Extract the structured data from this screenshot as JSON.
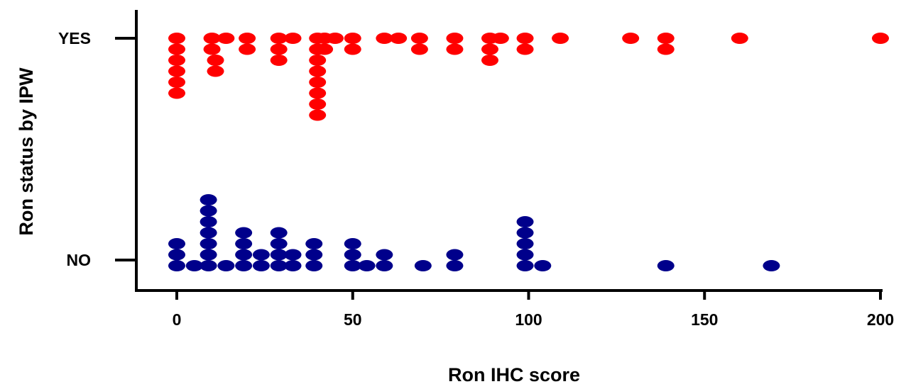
{
  "chart_data": {
    "type": "scatter",
    "title": "",
    "xlabel": "Ron IHC score",
    "ylabel": "Ron status by IPW",
    "xlim": [
      0,
      200
    ],
    "x_ticks": [
      0,
      50,
      100,
      150,
      200
    ],
    "categories": [
      "NO",
      "YES"
    ],
    "grid": false,
    "legend": "none",
    "series": [
      {
        "category": "YES",
        "color": "#ff0000",
        "points": [
          {
            "x": 0,
            "stack": 0
          },
          {
            "x": 0,
            "stack": 1
          },
          {
            "x": 0,
            "stack": 2
          },
          {
            "x": 0,
            "stack": 3
          },
          {
            "x": 0,
            "stack": 4
          },
          {
            "x": 0,
            "stack": 5
          },
          {
            "x": 10,
            "stack": 0
          },
          {
            "x": 10,
            "stack": 1
          },
          {
            "x": 11,
            "stack": 2
          },
          {
            "x": 11,
            "stack": 3
          },
          {
            "x": 14,
            "stack": 0
          },
          {
            "x": 20,
            "stack": 0
          },
          {
            "x": 20,
            "stack": 1
          },
          {
            "x": 29,
            "stack": 0
          },
          {
            "x": 29,
            "stack": 1
          },
          {
            "x": 29,
            "stack": 2
          },
          {
            "x": 33,
            "stack": 0
          },
          {
            "x": 40,
            "stack": 0
          },
          {
            "x": 40,
            "stack": 1
          },
          {
            "x": 40,
            "stack": 2
          },
          {
            "x": 40,
            "stack": 3
          },
          {
            "x": 40,
            "stack": 4
          },
          {
            "x": 40,
            "stack": 5
          },
          {
            "x": 40,
            "stack": 6
          },
          {
            "x": 40,
            "stack": 7
          },
          {
            "x": 42,
            "stack": 0
          },
          {
            "x": 42,
            "stack": 1
          },
          {
            "x": 45,
            "stack": 0
          },
          {
            "x": 50,
            "stack": 0
          },
          {
            "x": 50,
            "stack": 1
          },
          {
            "x": 59,
            "stack": 0
          },
          {
            "x": 63,
            "stack": 0
          },
          {
            "x": 69,
            "stack": 0
          },
          {
            "x": 69,
            "stack": 1
          },
          {
            "x": 79,
            "stack": 0
          },
          {
            "x": 79,
            "stack": 1
          },
          {
            "x": 89,
            "stack": 0
          },
          {
            "x": 89,
            "stack": 1
          },
          {
            "x": 89,
            "stack": 2
          },
          {
            "x": 92,
            "stack": 0
          },
          {
            "x": 99,
            "stack": 0
          },
          {
            "x": 99,
            "stack": 1
          },
          {
            "x": 109,
            "stack": 0
          },
          {
            "x": 129,
            "stack": 0
          },
          {
            "x": 139,
            "stack": 0
          },
          {
            "x": 139,
            "stack": 1
          },
          {
            "x": 160,
            "stack": 0
          },
          {
            "x": 200,
            "stack": 0
          }
        ]
      },
      {
        "category": "NO",
        "color": "#00008b",
        "points": [
          {
            "x": 0,
            "stack": 0
          },
          {
            "x": 0,
            "stack": 1
          },
          {
            "x": 0,
            "stack": 2
          },
          {
            "x": 5,
            "stack": 0
          },
          {
            "x": 9,
            "stack": 0
          },
          {
            "x": 9,
            "stack": 1
          },
          {
            "x": 9,
            "stack": 2
          },
          {
            "x": 9,
            "stack": 3
          },
          {
            "x": 9,
            "stack": 4
          },
          {
            "x": 9,
            "stack": 5
          },
          {
            "x": 9,
            "stack": 6
          },
          {
            "x": 14,
            "stack": 0
          },
          {
            "x": 19,
            "stack": 0
          },
          {
            "x": 19,
            "stack": 1
          },
          {
            "x": 19,
            "stack": 2
          },
          {
            "x": 19,
            "stack": 3
          },
          {
            "x": 24,
            "stack": 0
          },
          {
            "x": 24,
            "stack": 1
          },
          {
            "x": 29,
            "stack": 0
          },
          {
            "x": 29,
            "stack": 1
          },
          {
            "x": 29,
            "stack": 2
          },
          {
            "x": 29,
            "stack": 3
          },
          {
            "x": 33,
            "stack": 0
          },
          {
            "x": 33,
            "stack": 1
          },
          {
            "x": 39,
            "stack": 0
          },
          {
            "x": 39,
            "stack": 1
          },
          {
            "x": 39,
            "stack": 2
          },
          {
            "x": 50,
            "stack": 0
          },
          {
            "x": 50,
            "stack": 1
          },
          {
            "x": 50,
            "stack": 2
          },
          {
            "x": 54,
            "stack": 0
          },
          {
            "x": 59,
            "stack": 0
          },
          {
            "x": 59,
            "stack": 1
          },
          {
            "x": 70,
            "stack": 0
          },
          {
            "x": 79,
            "stack": 0
          },
          {
            "x": 79,
            "stack": 1
          },
          {
            "x": 99,
            "stack": 0
          },
          {
            "x": 99,
            "stack": 1
          },
          {
            "x": 99,
            "stack": 2
          },
          {
            "x": 99,
            "stack": 3
          },
          {
            "x": 99,
            "stack": 4
          },
          {
            "x": 104,
            "stack": 0
          },
          {
            "x": 139,
            "stack": 0
          },
          {
            "x": 169,
            "stack": 0
          }
        ]
      }
    ]
  }
}
